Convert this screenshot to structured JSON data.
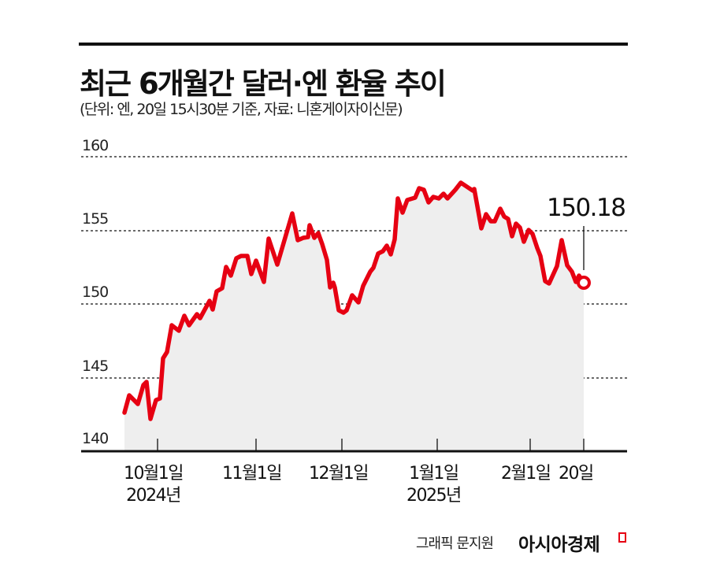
{
  "header": {
    "title": "최근 6개월간 달러·엔 환율 추이",
    "subtitle": "(단위: 엔, 20일 15시30분 기준, 자료: 니혼게이자이신문)"
  },
  "footer": {
    "credit": "그래픽 문지원",
    "brand": "아시아경제"
  },
  "colors": {
    "line": "#e60012",
    "fill": "#eeeeee",
    "grid": "#111111",
    "text": "#111111"
  },
  "callout": {
    "label": "150.18"
  },
  "chart_data": {
    "type": "area",
    "title": "최근 6개월간 달러·엔 환율 추이",
    "subtitle": "(단위: 엔, 20일 15시30분 기준, 자료: 니혼게이자이신문)",
    "xlabel": "",
    "ylabel": "엔",
    "ylim": [
      140,
      160
    ],
    "yticks": [
      "160",
      "155",
      "150",
      "145",
      "140"
    ],
    "grid": true,
    "grid_style": "dotted horizontal",
    "legend": null,
    "xticks": [
      {
        "label": "10월1일",
        "sub": "2024년"
      },
      {
        "label": "11월1일",
        "sub": ""
      },
      {
        "label": "12월1일",
        "sub": ""
      },
      {
        "label": "1월1일",
        "sub": "2025년"
      },
      {
        "label": "2월1일",
        "sub": ""
      },
      {
        "label": "20일",
        "sub": ""
      }
    ],
    "annotation": {
      "text": "150.18",
      "at": "last point (2월20일)"
    },
    "series": [
      {
        "name": "달러·엔 환율",
        "approx_values_start_to_end": [
          142.6,
          143.8,
          143.2,
          144.5,
          144.7,
          142.2,
          143.5,
          143.6,
          146.3,
          146.7,
          148.5,
          148.2,
          149.2,
          148.5,
          149.3,
          149.0,
          150.2,
          149.6,
          151.1,
          151.3,
          152.7,
          152.1,
          153.3,
          153.4,
          153.4,
          152.2,
          153.1,
          151.6,
          154.5,
          152.9,
          156.0,
          154.2,
          154.4,
          154.4,
          155.3,
          154.4,
          154.8,
          154.0,
          152.9,
          151.0,
          151.4,
          151.0,
          149.5,
          149.3,
          149.5,
          150.5,
          150.0,
          151.1,
          152.1,
          152.3,
          153.3,
          153.5,
          153.8,
          153.2,
          154.2,
          157.0,
          156.0,
          156.8,
          157.0,
          157.6,
          157.5,
          156.6,
          157.0,
          156.9,
          157.2,
          156.9,
          157.5,
          158.0,
          157.4,
          157.5,
          156.4,
          154.9,
          155.9,
          155.4,
          155.4,
          156.3,
          155.7,
          155.6,
          154.4,
          155.3,
          155.0,
          154.0,
          154.8,
          154.5,
          153.5,
          152.8,
          151.0,
          150.9,
          152.0,
          153.8,
          152.1,
          151.7,
          151.0,
          151.4,
          150.18
        ]
      }
    ],
    "pixel_path": "158,524 164,502 175,513 182,489 186,485 191,532 198,508 203,506 207,455 212,447 218,413 227,420 234,401 240,413 250,399 254,404 266,382 270,393 275,370 282,366 287,339 293,350 300,328 306,325 314,325 319,348 325,331 335,358 341,303 352,336 371,271 378,305 385,302 391,301 393,286 399,302 404,296 409,310 415,330 419,365 423,359 425,365 430,394 436,397 440,394 447,375 455,384 461,363 470,345 474,340 480,322 486,319 491,312 496,323 501,304 505,252 511,270 517,254 527,251 532,239 538,241 544,257 550,250 557,252 563,246 568,252 578,241 585,232 600,242 602,240 606,262 611,290 617,272 623,281 628,281 635,265 640,275 645,278 650,300 655,284 660,289 665,307 671,292 676,297 682,315 686,325 692,357 697,360 707,338 713,305 720,337 726,345 731,358 735,350 741,359"
  }
}
